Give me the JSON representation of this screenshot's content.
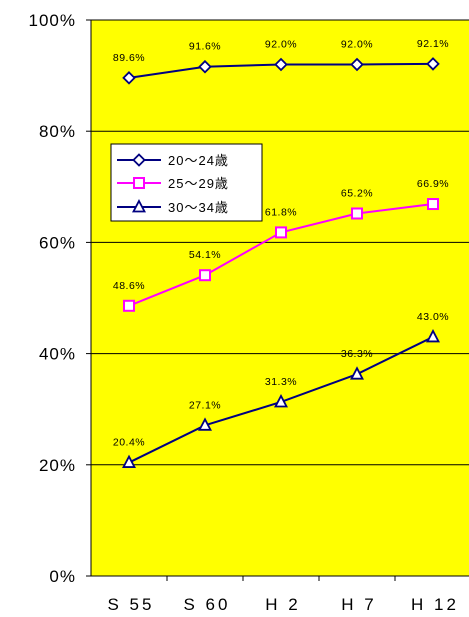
{
  "chart_data": {
    "type": "line",
    "categories": [
      "S55",
      "S60",
      "H2",
      "H7",
      "H12"
    ],
    "tick_labels_x": [
      "S 55",
      "S 60",
      "H 2",
      "H 7",
      "H 12"
    ],
    "ylim": [
      0,
      100
    ],
    "yticks": [
      0,
      20,
      40,
      60,
      80,
      100
    ],
    "ytick_labels": [
      "0%",
      "20%",
      "40%",
      "60%",
      "80%",
      "100%"
    ],
    "grid": true,
    "legend_position": "left",
    "background": "#ffff00",
    "series": [
      {
        "name": "20～24歳",
        "values": [
          89.6,
          91.6,
          92.0,
          92.0,
          92.1
        ],
        "labels": [
          "89.6%",
          "91.6%",
          "92.0%",
          "92.0%",
          "92.1%"
        ],
        "color": "#000080",
        "marker": "diamond"
      },
      {
        "name": "25～29歳",
        "values": [
          48.6,
          54.1,
          61.8,
          65.2,
          66.9
        ],
        "labels": [
          "48.6%",
          "54.1%",
          "61.8%",
          "65.2%",
          "66.9%"
        ],
        "color": "#ff00ff",
        "marker": "square"
      },
      {
        "name": "30～34歳",
        "values": [
          20.4,
          27.1,
          31.3,
          36.3,
          43.0
        ],
        "labels": [
          "20.4%",
          "27.1%",
          "31.3%",
          "36.3%",
          "43.0%"
        ],
        "color": "#000080",
        "marker": "triangle"
      }
    ]
  }
}
